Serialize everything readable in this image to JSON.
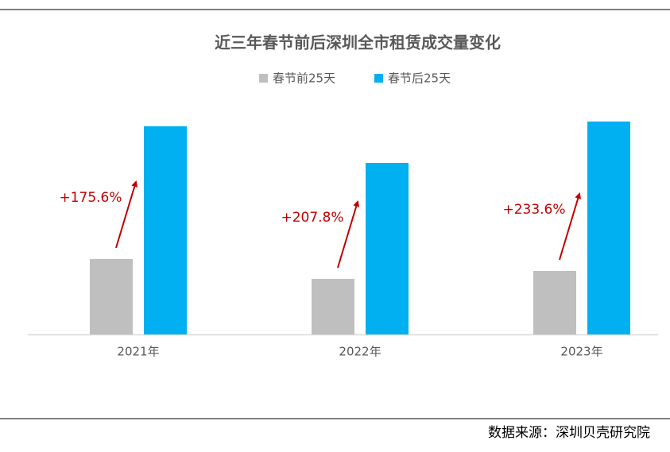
{
  "chart_data": {
    "type": "bar",
    "title": "近三年春节前后深圳全市租赁成交量变化",
    "categories": [
      "2021年",
      "2022年",
      "2023年"
    ],
    "series": [
      {
        "name": "春节前25天",
        "color": "#bfbfbf",
        "values": [
          95,
          70,
          80
        ]
      },
      {
        "name": "春节后25天",
        "color": "#00b0f0",
        "values": [
          262,
          216,
          268
        ]
      }
    ],
    "ylim": [
      0,
      281
    ],
    "annotations": [
      "+175.6%",
      "+207.8%",
      "+233.6%"
    ],
    "annotation_color": "#c00000",
    "source": "数据来源：深圳贝壳研究院"
  }
}
